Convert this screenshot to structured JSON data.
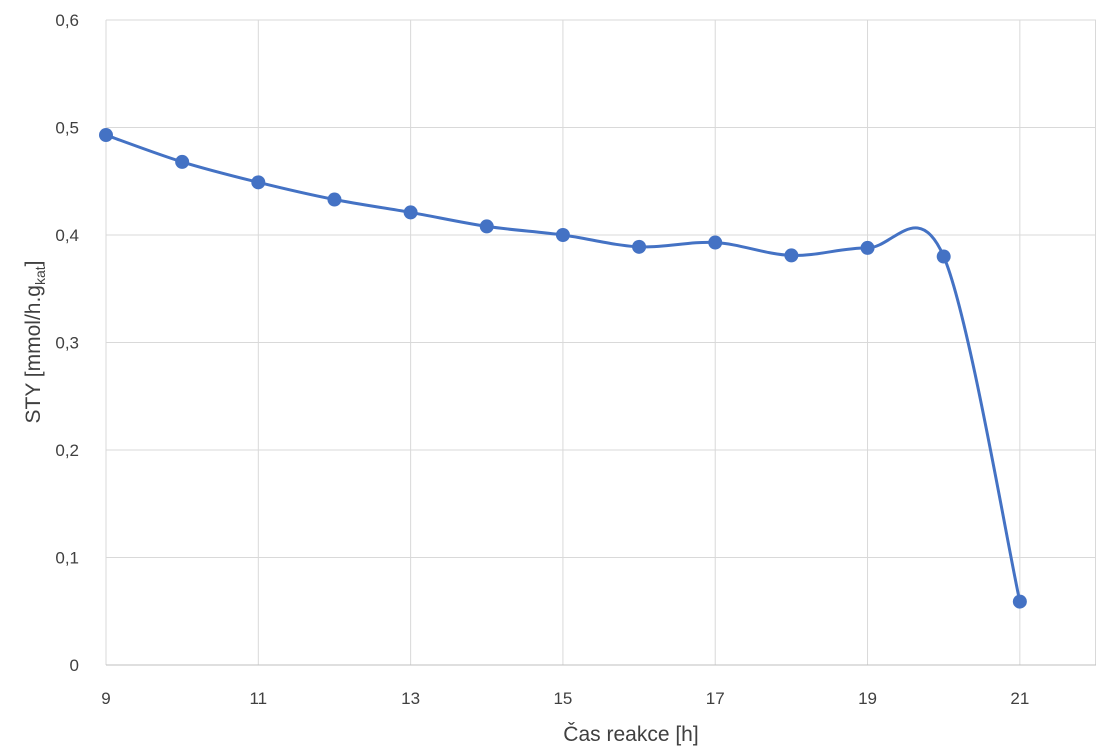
{
  "chart_data": {
    "type": "line",
    "smooth": true,
    "xlabel": "Čas reakce [h]",
    "ylabel": {
      "main": "STY [mmol/h.g",
      "subscript": "kat",
      "suffix": "]"
    },
    "xlim": [
      9,
      22
    ],
    "ylim": [
      0,
      0.6
    ],
    "xticks": [
      9,
      11,
      13,
      15,
      17,
      19,
      21
    ],
    "xtick_labels": [
      "9",
      "11",
      "13",
      "15",
      "17",
      "19",
      "21"
    ],
    "yticks": [
      0,
      0.1,
      0.2,
      0.3,
      0.4,
      0.5,
      0.6
    ],
    "ytick_labels": [
      "0",
      "0,1",
      "0,2",
      "0,3",
      "0,4",
      "0,5",
      "0,6"
    ],
    "grid": true,
    "legend": false,
    "series": [
      {
        "color": "#4472c4",
        "marker": "circle",
        "x": [
          9,
          10,
          11,
          12,
          13,
          14,
          15,
          16,
          17,
          18,
          19,
          20,
          21
        ],
        "y": [
          0.493,
          0.468,
          0.449,
          0.433,
          0.421,
          0.408,
          0.4,
          0.389,
          0.393,
          0.381,
          0.388,
          0.38,
          0.059
        ]
      }
    ]
  }
}
